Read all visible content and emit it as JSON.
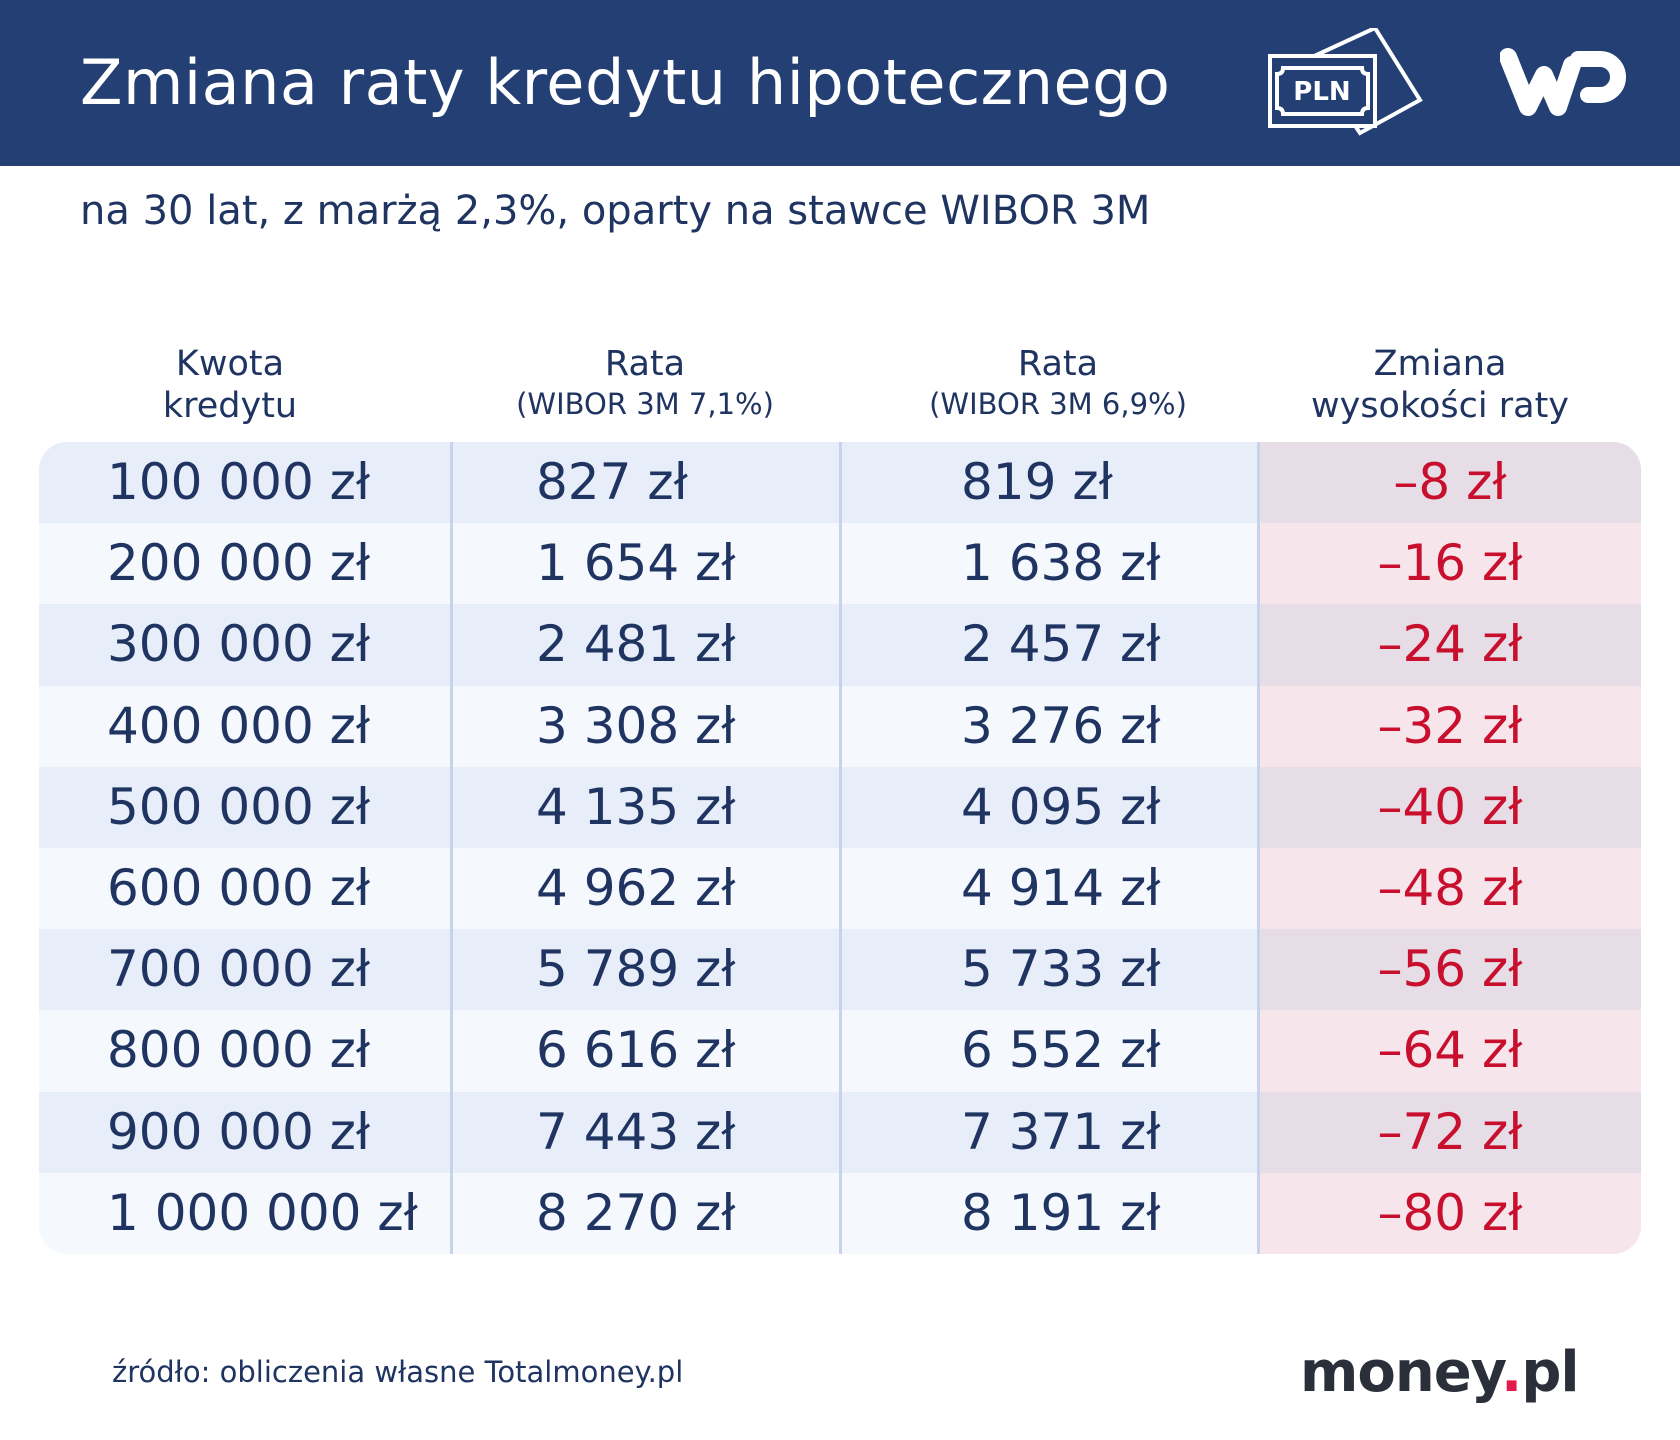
{
  "header": {
    "title": "Zmiana raty kredytu hipotecznego",
    "banknote_icon_text": "PLN",
    "logo": "WP",
    "background_color": "#233f74"
  },
  "subtitle": "na 30 lat, z marżą 2,3%, oparty na stawce WIBOR 3M",
  "table": {
    "columns": [
      {
        "line1": "Kwota",
        "line2": "kredytu"
      },
      {
        "line1": "Rata",
        "line2": "(WIBOR 3M 7,1%)"
      },
      {
        "line1": "Rata",
        "line2": "(WIBOR 3M 6,9%)"
      },
      {
        "line1": "Zmiana",
        "line2": "wysokości raty"
      }
    ],
    "rows": [
      [
        "100 000 zł",
        "827 zł",
        "819 zł",
        "–8 zł"
      ],
      [
        "200 000 zł",
        "1 654 zł",
        "1 638 zł",
        "–16 zł"
      ],
      [
        "300 000 zł",
        "2 481 zł",
        "2 457 zł",
        "–24 zł"
      ],
      [
        "400 000 zł",
        "3 308 zł",
        "3 276 zł",
        "–32 zł"
      ],
      [
        "500 000 zł",
        "4 135 zł",
        "4 095 zł",
        "–40 zł"
      ],
      [
        "600 000 zł",
        "4 962 zł",
        "4 914 zł",
        "–48 zł"
      ],
      [
        "700 000 zł",
        "5 789 zł",
        "5 733 zł",
        "–56 zł"
      ],
      [
        "800 000 zł",
        "6 616 zł",
        "6 552 zł",
        "–64 zł"
      ],
      [
        "900 000 zł",
        "7 443 zł",
        "7 371 zł",
        "–72 zł"
      ],
      [
        "1 000 000 zł",
        "8 270 zł",
        "8 191 zł",
        "–80 zł"
      ]
    ],
    "change_color": "#c8102e"
  },
  "footer": {
    "source": "źródło: obliczenia własne Totalmoney.pl",
    "brand": {
      "name": "money",
      "dot": ".",
      "tld": "pl"
    }
  }
}
